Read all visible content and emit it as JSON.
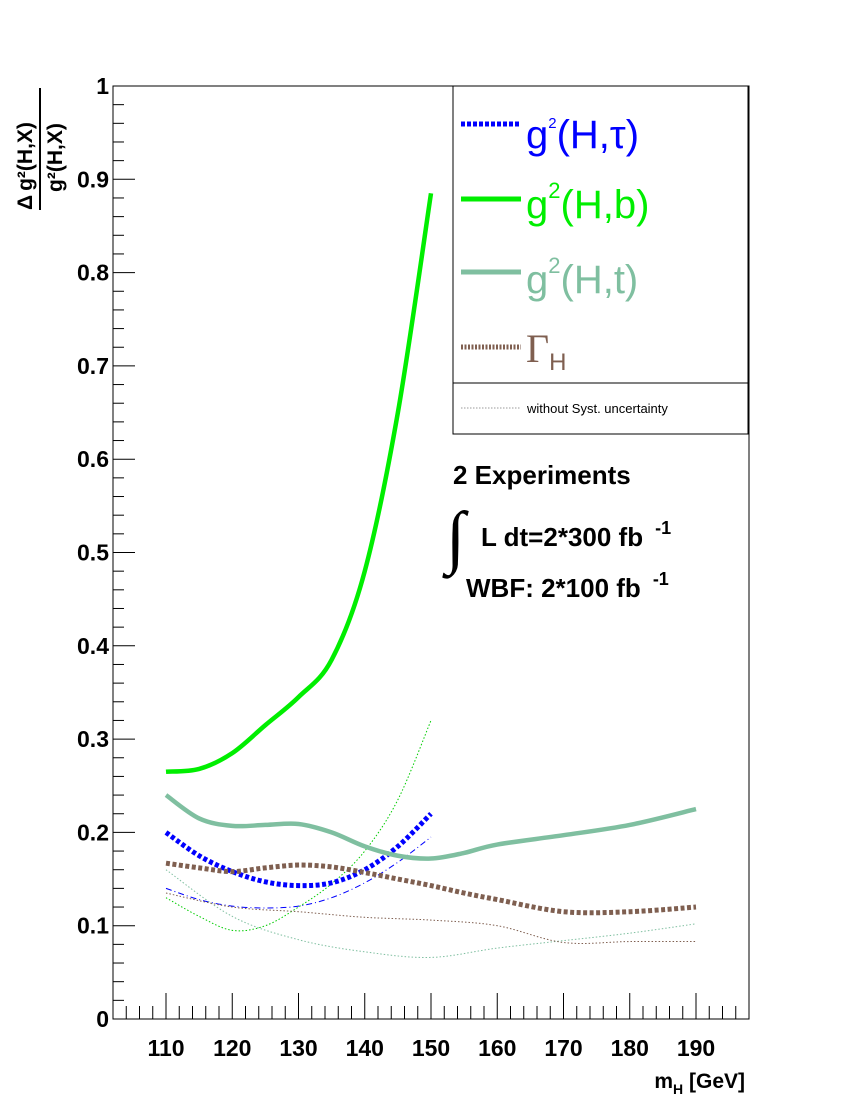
{
  "chart_data": {
    "type": "line",
    "xlabel": "m",
    "xlabel_sub": "H",
    "xlabel_unit": " [GeV]",
    "ylabel_num_delta": "Δ",
    "ylabel_num": "g²(H,X)",
    "ylabel_den": "g²(H,X)",
    "xlim": [
      102,
      198
    ],
    "ylim": [
      0,
      1
    ],
    "x_ticks": [
      110,
      120,
      130,
      140,
      150,
      160,
      170,
      180,
      190
    ],
    "y_ticks": [
      0,
      0.1,
      0.2,
      0.3,
      0.4,
      0.5,
      0.6,
      0.7,
      0.8,
      0.9,
      1
    ],
    "y_tick_labels": [
      "0",
      "0.1",
      "0.2",
      "0.3",
      "0.4",
      "0.5",
      "0.6",
      "0.7",
      "0.8",
      "0.9",
      "1"
    ],
    "series": [
      {
        "name": "g²(H,τ)",
        "color": "#0000ff",
        "style": "dotted-thick",
        "x": [
          110,
          115,
          120,
          125,
          130,
          135,
          140,
          145,
          150
        ],
        "y": [
          0.2,
          0.175,
          0.158,
          0.147,
          0.143,
          0.146,
          0.16,
          0.185,
          0.22
        ]
      },
      {
        "name": "g²(H,b)",
        "color": "#00ee00",
        "style": "solid",
        "x": [
          110,
          115,
          120,
          125,
          130,
          135,
          140,
          145,
          150
        ],
        "y": [
          0.265,
          0.268,
          0.285,
          0.315,
          0.345,
          0.385,
          0.48,
          0.65,
          0.885
        ]
      },
      {
        "name": "g²(H,t)",
        "color": "#7fbfa0",
        "style": "solid",
        "x": [
          110,
          115,
          120,
          125,
          130,
          135,
          140,
          145,
          150,
          155,
          160,
          170,
          180,
          190
        ],
        "y": [
          0.24,
          0.215,
          0.207,
          0.208,
          0.209,
          0.2,
          0.185,
          0.175,
          0.172,
          0.178,
          0.187,
          0.197,
          0.208,
          0.225
        ]
      },
      {
        "name": "Γ_H",
        "color": "#7f5f50",
        "style": "dotted-thick",
        "x": [
          110,
          115,
          120,
          125,
          130,
          135,
          140,
          145,
          150,
          155,
          160,
          170,
          180,
          190
        ],
        "y": [
          0.167,
          0.162,
          0.158,
          0.162,
          0.165,
          0.163,
          0.157,
          0.15,
          0.143,
          0.135,
          0.128,
          0.115,
          0.115,
          0.12
        ]
      },
      {
        "color": "#0000ff",
        "style": "dashdot-thin",
        "x": [
          110,
          115,
          120,
          125,
          130,
          135,
          140,
          145,
          150
        ],
        "y": [
          0.14,
          0.128,
          0.121,
          0.119,
          0.121,
          0.13,
          0.146,
          0.168,
          0.195
        ]
      },
      {
        "color": "#00cc00",
        "style": "dotted-thin",
        "x": [
          110,
          115,
          120,
          125,
          130,
          135,
          140,
          145,
          150
        ],
        "y": [
          0.13,
          0.11,
          0.095,
          0.1,
          0.12,
          0.145,
          0.18,
          0.235,
          0.32
        ]
      },
      {
        "color": "#7fbfa0",
        "style": "dotted-thin",
        "x": [
          110,
          120,
          130,
          140,
          150,
          160,
          170,
          180,
          190
        ],
        "y": [
          0.16,
          0.11,
          0.085,
          0.072,
          0.066,
          0.076,
          0.084,
          0.092,
          0.102
        ]
      },
      {
        "color": "#7f5f50",
        "style": "dotted-thin",
        "x": [
          110,
          120,
          130,
          140,
          150,
          160,
          170,
          180,
          190
        ],
        "y": [
          0.135,
          0.12,
          0.115,
          0.109,
          0.106,
          0.1,
          0.082,
          0.083,
          0.083
        ]
      }
    ]
  },
  "legend": {
    "entries": [
      {
        "base": "g",
        "sup": "2",
        "rest": "(H,τ)",
        "color": "#0000ff"
      },
      {
        "base": "g",
        "sup": "2",
        "rest": "(H,b)",
        "color": "#00ee00"
      },
      {
        "base": "g",
        "sup": "2",
        "rest": "(H,t)",
        "color": "#7fbfa0"
      },
      {
        "base": "Γ",
        "sub": "H",
        "color": "#7f5f50"
      }
    ],
    "syst_label": "without Syst. uncertainty"
  },
  "info": {
    "line1": "2 Experiments",
    "integral_symbol": "∫",
    "line2": "L dt=2*300 fb",
    "line2_sup": "-1",
    "line3": "WBF: 2*100 fb",
    "line3_sup": "-1"
  }
}
